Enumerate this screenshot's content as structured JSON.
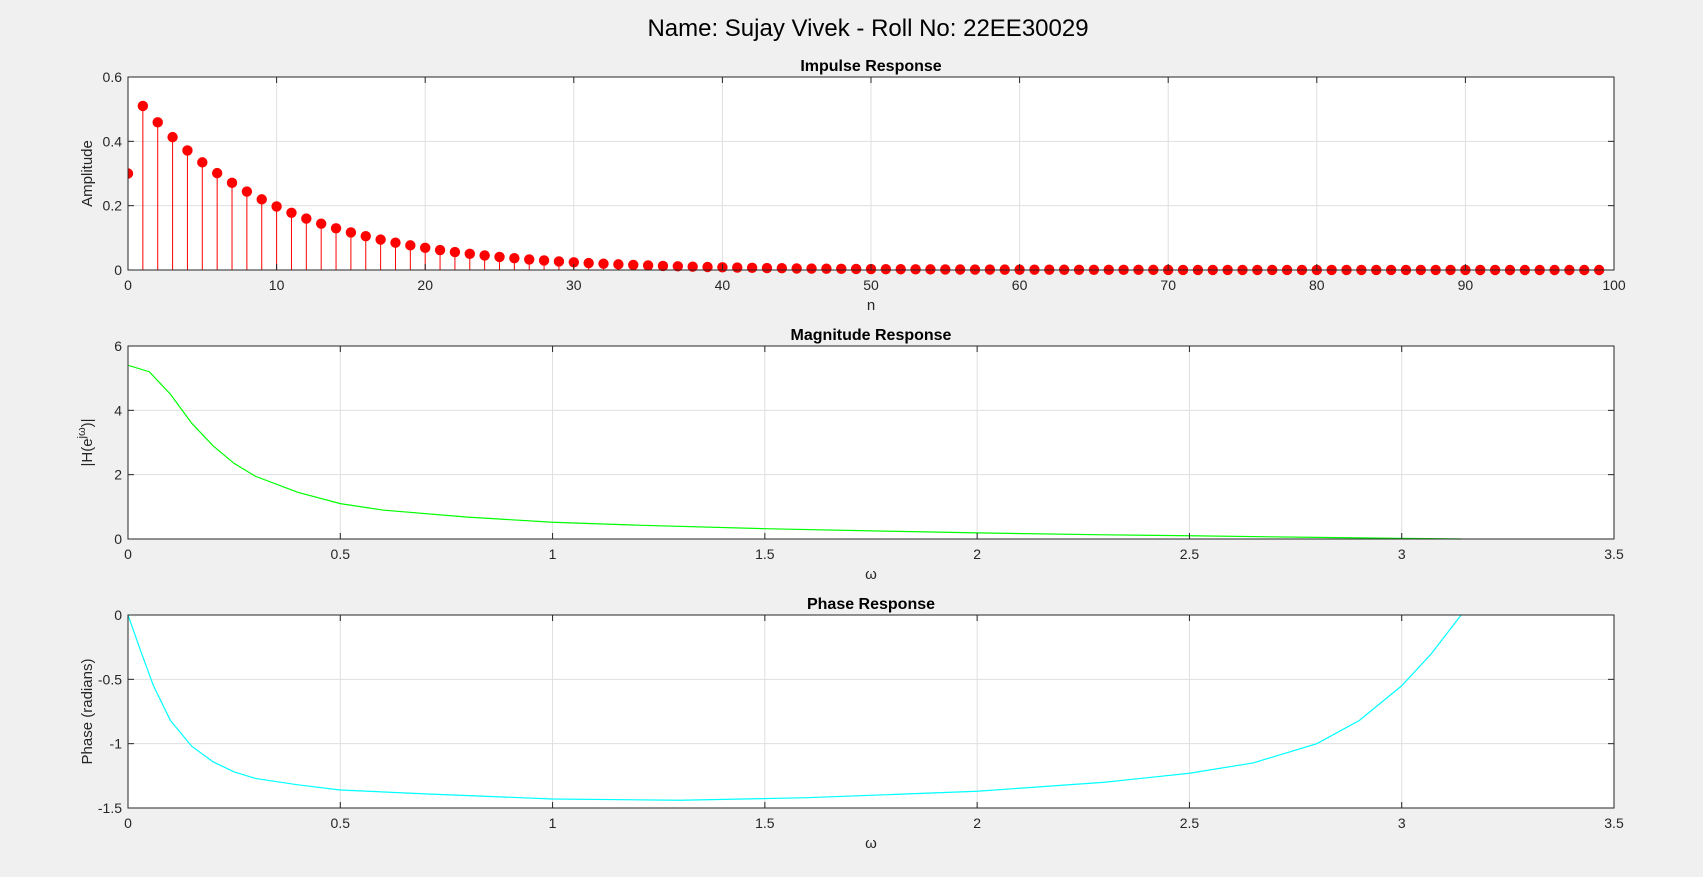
{
  "figure_title": "Name: Sujay Vivek - Roll No: 22EE30029",
  "chart_data": [
    {
      "type": "stem",
      "title": "Impulse Response",
      "xlabel": "n",
      "ylabel": "Amplitude",
      "xlim": [
        0,
        100
      ],
      "ylim": [
        0,
        0.6
      ],
      "xticks": [
        0,
        10,
        20,
        30,
        40,
        50,
        60,
        70,
        80,
        90,
        100
      ],
      "yticks": [
        0,
        0.2,
        0.4,
        0.6
      ],
      "grid": true,
      "color": "#ff0000",
      "n_start": 0,
      "n_end": 99,
      "values_note": "h[0]=0.3, h[n]=0.51*0.9^(n-1) for n>=1",
      "h0": 0.3,
      "h1": 0.51,
      "decay": 0.9
    },
    {
      "type": "line",
      "title": "Magnitude Response",
      "xlabel": "ω",
      "ylabel": "|H(e^{jω})|",
      "ylabel_base": "|H(e",
      "ylabel_sup": "jω",
      "ylabel_end": ")|",
      "xlim": [
        0,
        3.5
      ],
      "ylim": [
        0,
        6
      ],
      "xticks": [
        0,
        0.5,
        1,
        1.5,
        2,
        2.5,
        3,
        3.5
      ],
      "yticks": [
        0,
        2,
        4,
        6
      ],
      "grid": true,
      "color": "#00ff00",
      "x": [
        0,
        0.05,
        0.1,
        0.15,
        0.2,
        0.25,
        0.3,
        0.4,
        0.5,
        0.6,
        0.8,
        1.0,
        1.2,
        1.5,
        1.8,
        2.0,
        2.3,
        2.5,
        2.8,
        3.0,
        3.14
      ],
      "y": [
        5.4,
        5.2,
        4.5,
        3.6,
        2.9,
        2.35,
        1.95,
        1.45,
        1.1,
        0.9,
        0.68,
        0.52,
        0.43,
        0.32,
        0.24,
        0.19,
        0.13,
        0.1,
        0.05,
        0.02,
        0.0
      ]
    },
    {
      "type": "line",
      "title": "Phase Response",
      "xlabel": "ω",
      "ylabel": "Phase (radians)",
      "xlim": [
        0,
        3.5
      ],
      "ylim": [
        -1.5,
        0
      ],
      "xticks": [
        0,
        0.5,
        1,
        1.5,
        2,
        2.5,
        3,
        3.5
      ],
      "yticks": [
        -1.5,
        -1,
        -0.5,
        0
      ],
      "grid": true,
      "color": "#00ffff",
      "x": [
        0,
        0.03,
        0.06,
        0.1,
        0.15,
        0.2,
        0.25,
        0.3,
        0.4,
        0.5,
        0.7,
        1.0,
        1.3,
        1.6,
        2.0,
        2.3,
        2.5,
        2.65,
        2.8,
        2.9,
        3.0,
        3.07,
        3.14
      ],
      "y": [
        0,
        -0.28,
        -0.55,
        -0.82,
        -1.02,
        -1.14,
        -1.22,
        -1.27,
        -1.32,
        -1.36,
        -1.39,
        -1.43,
        -1.44,
        -1.42,
        -1.37,
        -1.3,
        -1.23,
        -1.15,
        -1.0,
        -0.82,
        -0.55,
        -0.3,
        0
      ]
    }
  ]
}
